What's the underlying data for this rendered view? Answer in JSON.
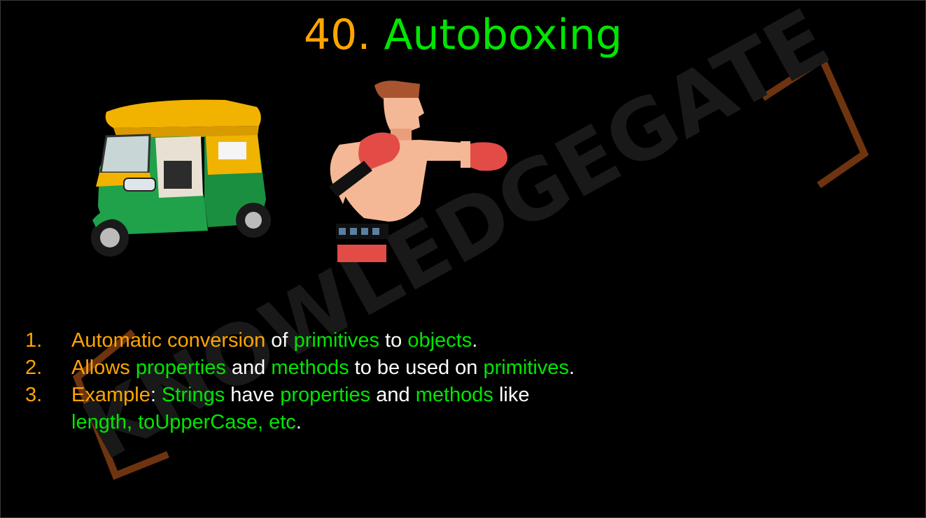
{
  "title": {
    "number": "40.",
    "word": "Autoboxing"
  },
  "watermark": {
    "text": "KNOWLEDGEGATE"
  },
  "images": {
    "left": "auto-rickshaw",
    "right": "boxer-punching"
  },
  "colors": {
    "accent_orange": "#ffa500",
    "accent_green": "#00e600",
    "text_white": "#ffffff",
    "background": "#000000",
    "watermark_brown": "#8b4513"
  },
  "list": [
    {
      "n": "1.",
      "segments": [
        {
          "t": "Automatic conversion",
          "c": "o"
        },
        {
          "t": " of ",
          "c": "w"
        },
        {
          "t": "primitives",
          "c": "g"
        },
        {
          "t": " to ",
          "c": "w"
        },
        {
          "t": "objects",
          "c": "g"
        },
        {
          "t": ".",
          "c": "w"
        }
      ]
    },
    {
      "n": "2.",
      "segments": [
        {
          "t": "Allows",
          "c": "o"
        },
        {
          "t": " ",
          "c": "w"
        },
        {
          "t": "properties",
          "c": "g"
        },
        {
          "t": " and ",
          "c": "w"
        },
        {
          "t": "methods",
          "c": "g"
        },
        {
          "t": " to be used on ",
          "c": "w"
        },
        {
          "t": "primitives",
          "c": "g"
        },
        {
          "t": ".",
          "c": "w"
        }
      ]
    },
    {
      "n": "3.",
      "segments": [
        {
          "t": "Example",
          "c": "o"
        },
        {
          "t": ": ",
          "c": "w"
        },
        {
          "t": "Strings",
          "c": "g"
        },
        {
          "t": " have ",
          "c": "w"
        },
        {
          "t": "properties",
          "c": "g"
        },
        {
          "t": " and ",
          "c": "w"
        },
        {
          "t": "methods",
          "c": "g"
        },
        {
          "t": " like",
          "c": "w"
        },
        {
          "br": true
        },
        {
          "t": "length, toUpperCase, etc",
          "c": "g"
        },
        {
          "t": ".",
          "c": "w"
        }
      ]
    }
  ]
}
